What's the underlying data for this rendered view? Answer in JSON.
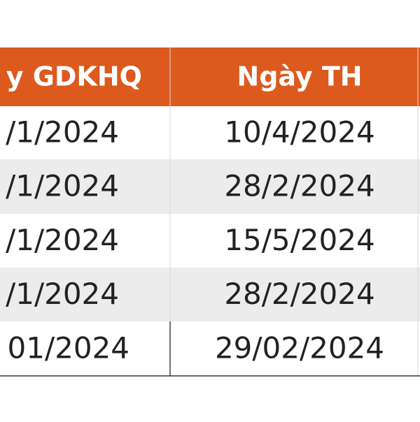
{
  "table": {
    "header": [
      "y GDKHQ",
      "Ngày TH"
    ],
    "rows": [
      [
        "/1/2024",
        "10/4/2024"
      ],
      [
        "/1/2024",
        "28/2/2024"
      ],
      [
        "/1/2024",
        "15/5/2024"
      ],
      [
        "/1/2024",
        "28/2/2024"
      ],
      [
        "01/2024",
        "29/02/2024"
      ]
    ]
  }
}
